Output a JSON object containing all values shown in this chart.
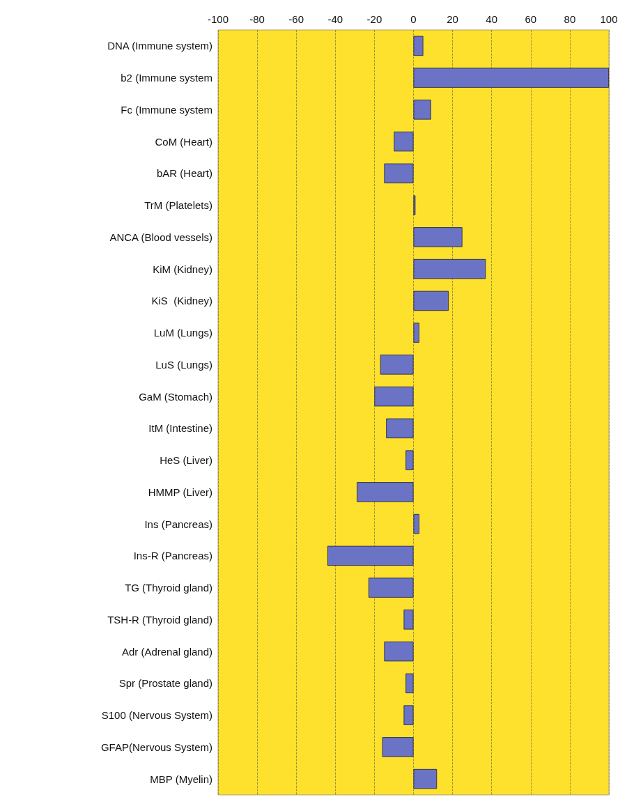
{
  "chart_data": {
    "type": "bar",
    "orientation": "horizontal",
    "categories": [
      "DNA (Immune system)",
      "b2 (Immune system",
      "Fc (Immune system",
      "CoM (Heart)",
      "bAR (Heart)",
      "TrM (Platelets)",
      "ANCA (Blood vessels)",
      "KiM (Kidney)",
      "KiS  (Kidney)",
      "LuM (Lungs)",
      "LuS (Lungs)",
      "GaM (Stomach)",
      "ItM (Intestine)",
      "HeS (Liver)",
      "HMMP (Liver)",
      "Ins (Pancreas)",
      "Ins-R (Pancreas)",
      "TG (Thyroid gland)",
      "TSH-R (Thyroid gland)",
      "Adr (Adrenal gland)",
      "Spr (Prostate gland)",
      "S100 (Nervous System)",
      "GFAP(Nervous System)",
      "MBP (Myelin)"
    ],
    "values": [
      5,
      100,
      9,
      -10,
      -15,
      1,
      25,
      37,
      18,
      3,
      -17,
      -20,
      -14,
      -4,
      -29,
      3,
      -44,
      -23,
      -5,
      -15,
      -4,
      -5,
      -16,
      12
    ],
    "color": "#6b74c4",
    "xlim": [
      -100,
      100
    ],
    "xticks": [
      -100,
      -80,
      -60,
      -40,
      -20,
      0,
      20,
      40,
      60,
      80,
      100
    ],
    "grid": "x"
  }
}
